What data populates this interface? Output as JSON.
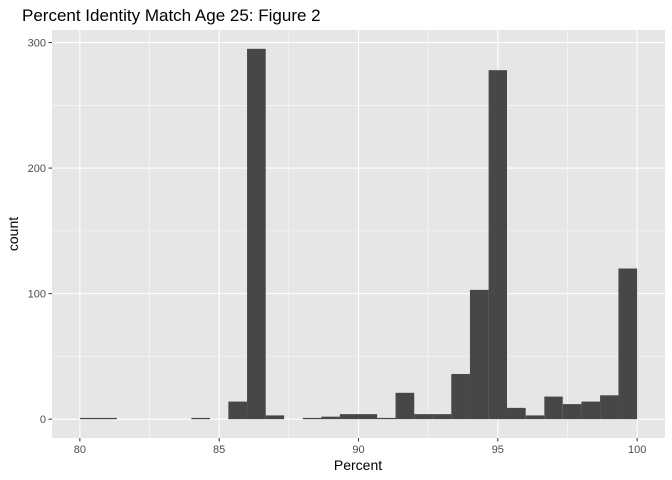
{
  "chart_data": {
    "type": "bar",
    "title": "Percent Identity Match Age 25: Figure 2",
    "xlabel": "Percent",
    "ylabel": "count",
    "xlim": [
      79,
      101
    ],
    "ylim": [
      -15,
      310
    ],
    "xticks": [
      80,
      85,
      90,
      95,
      100
    ],
    "xtick_labels": [
      "80",
      "85",
      "90",
      "95",
      "100"
    ],
    "yticks": [
      0,
      100,
      200,
      300
    ],
    "ytick_labels": [
      "0",
      "100",
      "200",
      "300"
    ],
    "grid": true,
    "legend": "none",
    "bin_width": 0.667,
    "bins": [
      {
        "x0": 80.0,
        "x1": 80.67,
        "count": 1
      },
      {
        "x0": 80.67,
        "x1": 81.33,
        "count": 1
      },
      {
        "x0": 84.0,
        "x1": 84.67,
        "count": 1
      },
      {
        "x0": 85.33,
        "x1": 86.0,
        "count": 14
      },
      {
        "x0": 86.0,
        "x1": 86.67,
        "count": 295
      },
      {
        "x0": 86.67,
        "x1": 87.33,
        "count": 3
      },
      {
        "x0": 88.0,
        "x1": 88.67,
        "count": 1
      },
      {
        "x0": 88.67,
        "x1": 89.33,
        "count": 2
      },
      {
        "x0": 89.33,
        "x1": 90.0,
        "count": 4
      },
      {
        "x0": 90.0,
        "x1": 90.67,
        "count": 4
      },
      {
        "x0": 90.67,
        "x1": 91.33,
        "count": 1
      },
      {
        "x0": 91.33,
        "x1": 92.0,
        "count": 21
      },
      {
        "x0": 92.0,
        "x1": 92.67,
        "count": 4
      },
      {
        "x0": 92.67,
        "x1": 93.33,
        "count": 4
      },
      {
        "x0": 93.33,
        "x1": 94.0,
        "count": 36
      },
      {
        "x0": 94.0,
        "x1": 94.67,
        "count": 103
      },
      {
        "x0": 94.67,
        "x1": 95.33,
        "count": 278
      },
      {
        "x0": 95.33,
        "x1": 96.0,
        "count": 9
      },
      {
        "x0": 96.0,
        "x1": 96.67,
        "count": 3
      },
      {
        "x0": 96.67,
        "x1": 97.33,
        "count": 18
      },
      {
        "x0": 97.33,
        "x1": 98.0,
        "count": 12
      },
      {
        "x0": 98.0,
        "x1": 98.67,
        "count": 14
      },
      {
        "x0": 98.67,
        "x1": 99.33,
        "count": 19
      },
      {
        "x0": 99.33,
        "x1": 100.0,
        "count": 120
      }
    ],
    "colors": {
      "panel": "#e6e6e6",
      "grid_major": "#ffffff",
      "bar": "#474747"
    }
  }
}
